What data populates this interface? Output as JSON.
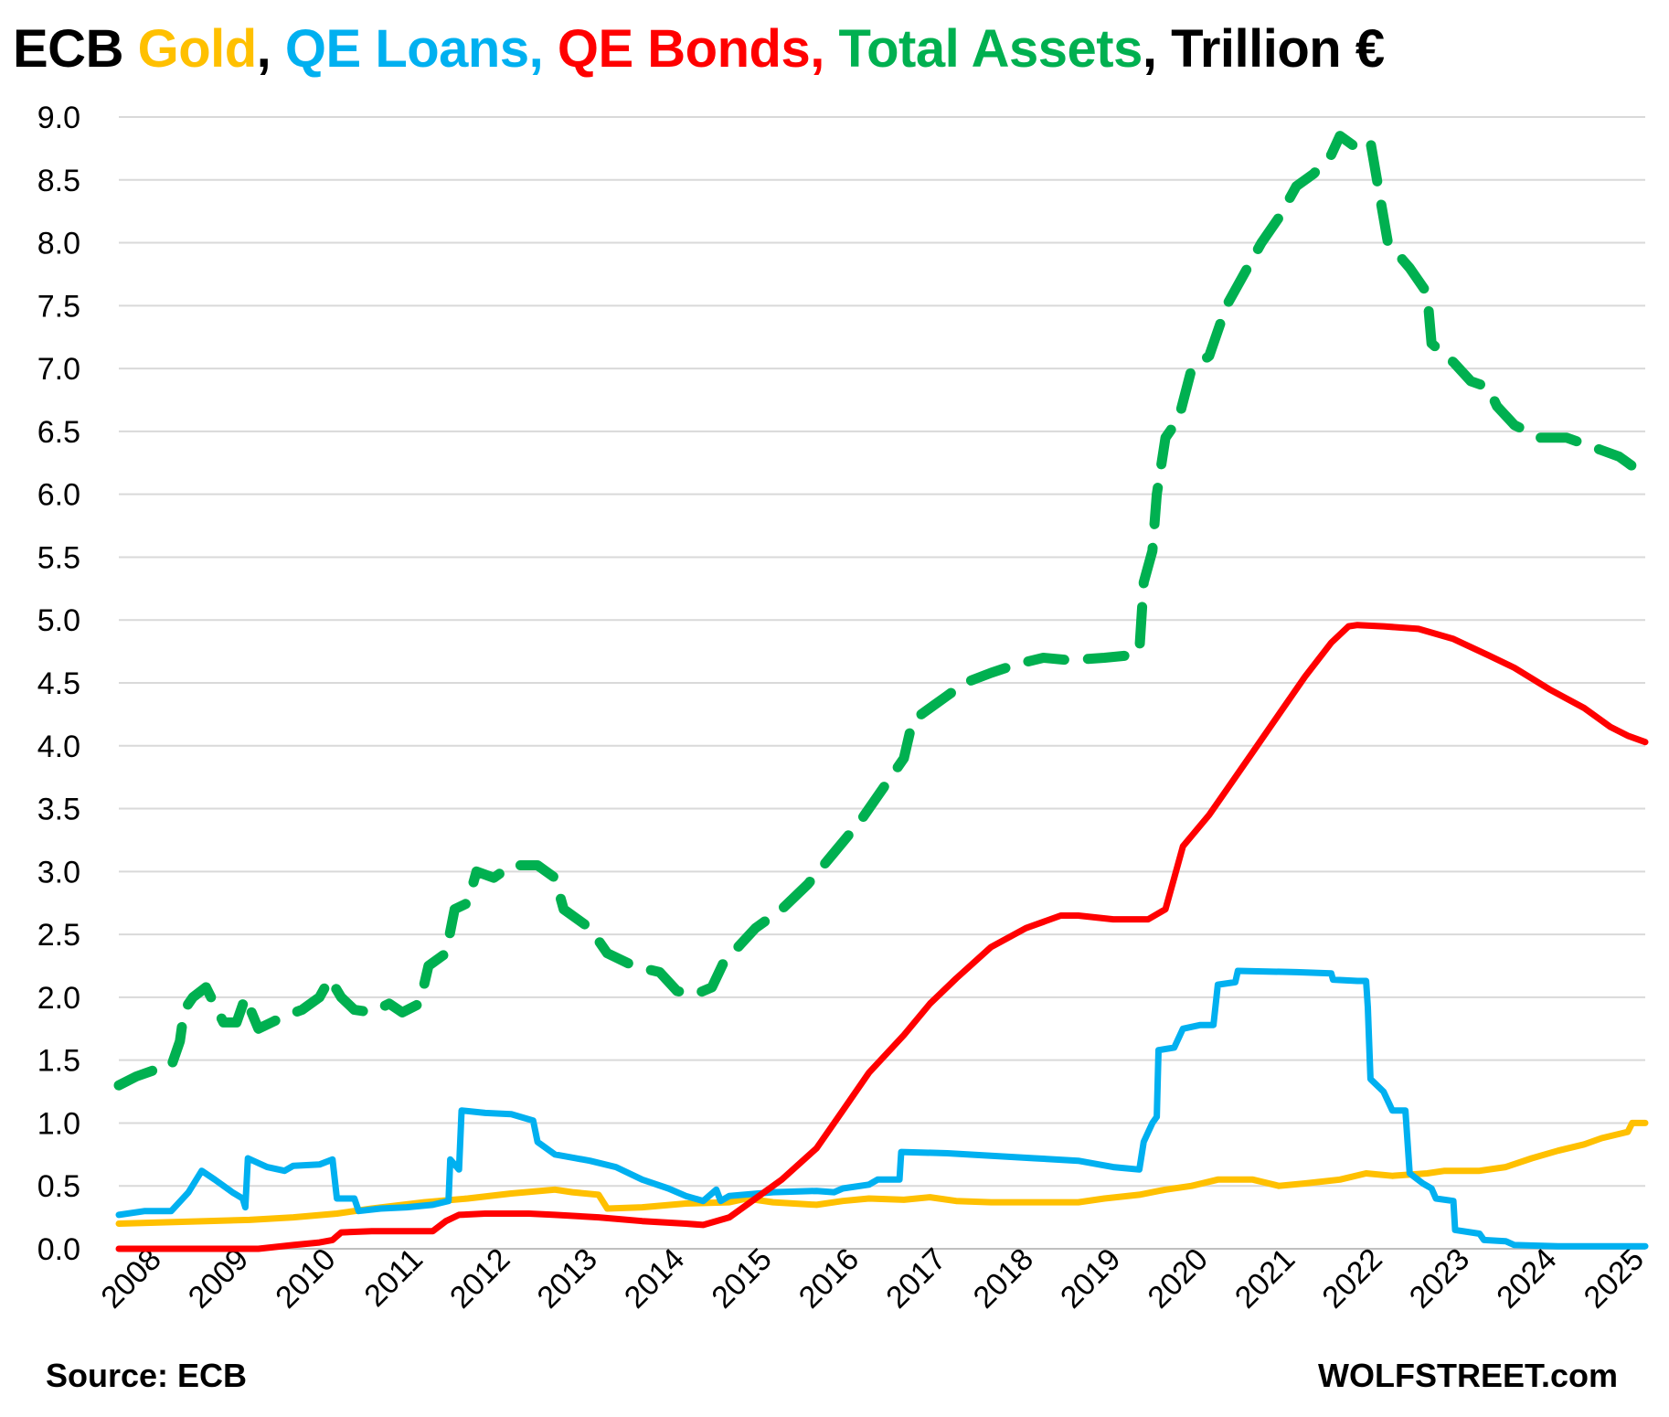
{
  "chart_data": {
    "type": "line",
    "title_parts": [
      {
        "text": "ECB ",
        "color": "#000000"
      },
      {
        "text": "Gold",
        "color": "#FFC000"
      },
      {
        "text": ", ",
        "color": "#000000"
      },
      {
        "text": "QE Loans,",
        "color": "#00B0F0"
      },
      {
        "text": " ",
        "color": "#000000"
      },
      {
        "text": "QE Bonds,",
        "color": "#FF0000"
      },
      {
        "text": " ",
        "color": "#000000"
      },
      {
        "text": "Total Assets",
        "color": "#00B050"
      },
      {
        "text": ", Trillion €",
        "color": "#000000"
      }
    ],
    "source": "Source: ECB",
    "brand": "WOLFSTREET.com",
    "x_tick_labels": [
      "2008",
      "2009",
      "2010",
      "2011",
      "2012",
      "2013",
      "2014",
      "2015",
      "2016",
      "2017",
      "2018",
      "2019",
      "2020",
      "2021",
      "2022",
      "2023",
      "2024",
      "2025"
    ],
    "y_tick_labels": [
      "0.0",
      "0.5",
      "1.0",
      "1.5",
      "2.0",
      "2.5",
      "3.0",
      "3.5",
      "4.0",
      "4.5",
      "5.0",
      "5.5",
      "6.0",
      "6.5",
      "7.0",
      "7.5",
      "8.0",
      "8.5",
      "9.0"
    ],
    "xlim": [
      2008.0,
      2025.5
    ],
    "ylim": [
      0,
      9
    ],
    "grid": "horizontal",
    "series": [
      {
        "key": "gold",
        "color": "#FFC000",
        "style": "solid",
        "points": [
          [
            2008.0,
            0.2
          ],
          [
            2008.5,
            0.21
          ],
          [
            2009.0,
            0.22
          ],
          [
            2009.5,
            0.23
          ],
          [
            2010.0,
            0.25
          ],
          [
            2010.5,
            0.28
          ],
          [
            2010.9,
            0.32
          ],
          [
            2011.5,
            0.37
          ],
          [
            2012.0,
            0.4
          ],
          [
            2012.5,
            0.44
          ],
          [
            2013.0,
            0.47
          ],
          [
            2013.2,
            0.45
          ],
          [
            2013.5,
            0.43
          ],
          [
            2013.6,
            0.32
          ],
          [
            2014.0,
            0.33
          ],
          [
            2014.5,
            0.36
          ],
          [
            2015.0,
            0.37
          ],
          [
            2015.2,
            0.4
          ],
          [
            2015.5,
            0.37
          ],
          [
            2016.0,
            0.35
          ],
          [
            2016.3,
            0.38
          ],
          [
            2016.6,
            0.4
          ],
          [
            2017.0,
            0.39
          ],
          [
            2017.3,
            0.41
          ],
          [
            2017.6,
            0.38
          ],
          [
            2018.0,
            0.37
          ],
          [
            2018.5,
            0.37
          ],
          [
            2019.0,
            0.37
          ],
          [
            2019.3,
            0.4
          ],
          [
            2019.7,
            0.43
          ],
          [
            2020.0,
            0.47
          ],
          [
            2020.3,
            0.5
          ],
          [
            2020.6,
            0.55
          ],
          [
            2021.0,
            0.55
          ],
          [
            2021.3,
            0.5
          ],
          [
            2021.6,
            0.52
          ],
          [
            2022.0,
            0.55
          ],
          [
            2022.3,
            0.6
          ],
          [
            2022.6,
            0.58
          ],
          [
            2023.0,
            0.6
          ],
          [
            2023.2,
            0.62
          ],
          [
            2023.6,
            0.62
          ],
          [
            2023.9,
            0.65
          ],
          [
            2024.2,
            0.72
          ],
          [
            2024.5,
            0.78
          ],
          [
            2024.8,
            0.83
          ],
          [
            2025.0,
            0.88
          ],
          [
            2025.3,
            0.93
          ],
          [
            2025.35,
            1.0
          ],
          [
            2025.5,
            1.0
          ]
        ]
      },
      {
        "key": "qe_loans",
        "color": "#00B0F0",
        "style": "solid",
        "points": [
          [
            2008.0,
            0.27
          ],
          [
            2008.3,
            0.3
          ],
          [
            2008.6,
            0.3
          ],
          [
            2008.8,
            0.45
          ],
          [
            2008.95,
            0.62
          ],
          [
            2009.1,
            0.55
          ],
          [
            2009.3,
            0.45
          ],
          [
            2009.42,
            0.4
          ],
          [
            2009.45,
            0.33
          ],
          [
            2009.48,
            0.72
          ],
          [
            2009.7,
            0.65
          ],
          [
            2009.9,
            0.62
          ],
          [
            2010.0,
            0.66
          ],
          [
            2010.3,
            0.67
          ],
          [
            2010.45,
            0.71
          ],
          [
            2010.5,
            0.4
          ],
          [
            2010.7,
            0.4
          ],
          [
            2010.75,
            0.3
          ],
          [
            2011.0,
            0.32
          ],
          [
            2011.3,
            0.33
          ],
          [
            2011.6,
            0.35
          ],
          [
            2011.78,
            0.38
          ],
          [
            2011.8,
            0.71
          ],
          [
            2011.9,
            0.63
          ],
          [
            2011.93,
            1.1
          ],
          [
            2012.2,
            1.08
          ],
          [
            2012.5,
            1.07
          ],
          [
            2012.75,
            1.02
          ],
          [
            2012.8,
            0.85
          ],
          [
            2013.0,
            0.75
          ],
          [
            2013.4,
            0.7
          ],
          [
            2013.7,
            0.65
          ],
          [
            2014.0,
            0.55
          ],
          [
            2014.3,
            0.48
          ],
          [
            2014.5,
            0.42
          ],
          [
            2014.7,
            0.38
          ],
          [
            2014.85,
            0.47
          ],
          [
            2014.9,
            0.38
          ],
          [
            2015.0,
            0.42
          ],
          [
            2015.5,
            0.45
          ],
          [
            2016.0,
            0.46
          ],
          [
            2016.2,
            0.45
          ],
          [
            2016.3,
            0.48
          ],
          [
            2016.6,
            0.51
          ],
          [
            2016.7,
            0.55
          ],
          [
            2016.95,
            0.55
          ],
          [
            2016.97,
            0.77
          ],
          [
            2017.5,
            0.76
          ],
          [
            2018.0,
            0.74
          ],
          [
            2018.5,
            0.72
          ],
          [
            2019.0,
            0.7
          ],
          [
            2019.4,
            0.65
          ],
          [
            2019.7,
            0.63
          ],
          [
            2019.75,
            0.85
          ],
          [
            2019.85,
            1.0
          ],
          [
            2019.9,
            1.05
          ],
          [
            2019.92,
            1.58
          ],
          [
            2020.1,
            1.6
          ],
          [
            2020.2,
            1.75
          ],
          [
            2020.4,
            1.78
          ],
          [
            2020.55,
            1.78
          ],
          [
            2020.6,
            2.1
          ],
          [
            2020.8,
            2.12
          ],
          [
            2020.83,
            2.21
          ],
          [
            2021.5,
            2.2
          ],
          [
            2021.9,
            2.19
          ],
          [
            2021.92,
            2.14
          ],
          [
            2022.2,
            2.13
          ],
          [
            2022.3,
            2.13
          ],
          [
            2022.32,
            1.92
          ],
          [
            2022.35,
            1.35
          ],
          [
            2022.5,
            1.25
          ],
          [
            2022.6,
            1.1
          ],
          [
            2022.75,
            1.1
          ],
          [
            2022.8,
            0.6
          ],
          [
            2022.95,
            0.52
          ],
          [
            2023.05,
            0.48
          ],
          [
            2023.1,
            0.4
          ],
          [
            2023.3,
            0.38
          ],
          [
            2023.32,
            0.15
          ],
          [
            2023.6,
            0.12
          ],
          [
            2023.65,
            0.07
          ],
          [
            2023.9,
            0.06
          ],
          [
            2024.0,
            0.03
          ],
          [
            2024.5,
            0.02
          ],
          [
            2025.0,
            0.02
          ],
          [
            2025.5,
            0.02
          ]
        ]
      },
      {
        "key": "qe_bonds",
        "color": "#FF0000",
        "style": "solid",
        "points": [
          [
            2008.0,
            0.0
          ],
          [
            2009.0,
            0.0
          ],
          [
            2009.6,
            0.0
          ],
          [
            2010.0,
            0.03
          ],
          [
            2010.3,
            0.05
          ],
          [
            2010.45,
            0.07
          ],
          [
            2010.55,
            0.13
          ],
          [
            2010.9,
            0.14
          ],
          [
            2011.6,
            0.14
          ],
          [
            2011.75,
            0.22
          ],
          [
            2011.9,
            0.27
          ],
          [
            2012.2,
            0.28
          ],
          [
            2012.7,
            0.28
          ],
          [
            2013.0,
            0.27
          ],
          [
            2013.5,
            0.25
          ],
          [
            2014.0,
            0.22
          ],
          [
            2014.5,
            0.2
          ],
          [
            2014.7,
            0.19
          ],
          [
            2015.0,
            0.25
          ],
          [
            2015.3,
            0.4
          ],
          [
            2015.6,
            0.55
          ],
          [
            2016.0,
            0.8
          ],
          [
            2016.3,
            1.1
          ],
          [
            2016.6,
            1.4
          ],
          [
            2017.0,
            1.7
          ],
          [
            2017.3,
            1.95
          ],
          [
            2017.6,
            2.15
          ],
          [
            2018.0,
            2.4
          ],
          [
            2018.4,
            2.55
          ],
          [
            2018.8,
            2.65
          ],
          [
            2019.0,
            2.65
          ],
          [
            2019.4,
            2.62
          ],
          [
            2019.8,
            2.62
          ],
          [
            2020.0,
            2.7
          ],
          [
            2020.1,
            2.95
          ],
          [
            2020.2,
            3.2
          ],
          [
            2020.5,
            3.45
          ],
          [
            2020.8,
            3.75
          ],
          [
            2021.0,
            3.95
          ],
          [
            2021.3,
            4.25
          ],
          [
            2021.6,
            4.55
          ],
          [
            2021.9,
            4.82
          ],
          [
            2022.1,
            4.95
          ],
          [
            2022.2,
            4.96
          ],
          [
            2022.5,
            4.95
          ],
          [
            2022.9,
            4.93
          ],
          [
            2023.3,
            4.85
          ],
          [
            2023.7,
            4.72
          ],
          [
            2024.0,
            4.62
          ],
          [
            2024.4,
            4.45
          ],
          [
            2024.8,
            4.3
          ],
          [
            2025.1,
            4.15
          ],
          [
            2025.3,
            4.08
          ],
          [
            2025.5,
            4.03
          ]
        ]
      },
      {
        "key": "total_assets",
        "color": "#00B050",
        "style": "dashed",
        "points": [
          [
            2008.0,
            1.3
          ],
          [
            2008.2,
            1.37
          ],
          [
            2008.4,
            1.42
          ],
          [
            2008.6,
            1.45
          ],
          [
            2008.7,
            1.65
          ],
          [
            2008.75,
            1.9
          ],
          [
            2008.85,
            2.0
          ],
          [
            2009.0,
            2.08
          ],
          [
            2009.2,
            1.8
          ],
          [
            2009.35,
            1.8
          ],
          [
            2009.45,
            2.0
          ],
          [
            2009.6,
            1.75
          ],
          [
            2009.75,
            1.8
          ],
          [
            2009.9,
            1.85
          ],
          [
            2010.1,
            1.9
          ],
          [
            2010.3,
            2.0
          ],
          [
            2010.42,
            2.15
          ],
          [
            2010.55,
            2.0
          ],
          [
            2010.7,
            1.9
          ],
          [
            2010.9,
            1.88
          ],
          [
            2011.1,
            1.95
          ],
          [
            2011.25,
            1.88
          ],
          [
            2011.45,
            1.95
          ],
          [
            2011.55,
            2.25
          ],
          [
            2011.75,
            2.35
          ],
          [
            2011.85,
            2.7
          ],
          [
            2012.0,
            2.75
          ],
          [
            2012.1,
            3.0
          ],
          [
            2012.3,
            2.95
          ],
          [
            2012.5,
            3.05
          ],
          [
            2012.8,
            3.05
          ],
          [
            2013.0,
            2.95
          ],
          [
            2013.1,
            2.7
          ],
          [
            2013.4,
            2.55
          ],
          [
            2013.6,
            2.35
          ],
          [
            2013.9,
            2.25
          ],
          [
            2014.2,
            2.2
          ],
          [
            2014.4,
            2.05
          ],
          [
            2014.6,
            2.02
          ],
          [
            2014.8,
            2.08
          ],
          [
            2014.95,
            2.3
          ],
          [
            2015.1,
            2.4
          ],
          [
            2015.3,
            2.55
          ],
          [
            2015.6,
            2.7
          ],
          [
            2015.9,
            2.9
          ],
          [
            2016.2,
            3.15
          ],
          [
            2016.5,
            3.4
          ],
          [
            2016.8,
            3.7
          ],
          [
            2017.0,
            3.9
          ],
          [
            2017.1,
            4.2
          ],
          [
            2017.3,
            4.3
          ],
          [
            2017.5,
            4.4
          ],
          [
            2017.7,
            4.5
          ],
          [
            2018.0,
            4.58
          ],
          [
            2018.3,
            4.65
          ],
          [
            2018.6,
            4.7
          ],
          [
            2018.9,
            4.68
          ],
          [
            2019.3,
            4.7
          ],
          [
            2019.6,
            4.72
          ],
          [
            2019.7,
            4.75
          ],
          [
            2019.75,
            5.3
          ],
          [
            2019.85,
            5.55
          ],
          [
            2019.9,
            6.0
          ],
          [
            2020.0,
            6.45
          ],
          [
            2020.15,
            6.6
          ],
          [
            2020.3,
            7.0
          ],
          [
            2020.5,
            7.1
          ],
          [
            2020.7,
            7.5
          ],
          [
            2020.9,
            7.75
          ],
          [
            2021.1,
            8.0
          ],
          [
            2021.3,
            8.2
          ],
          [
            2021.5,
            8.45
          ],
          [
            2021.7,
            8.55
          ],
          [
            2021.9,
            8.7
          ],
          [
            2022.0,
            8.85
          ],
          [
            2022.2,
            8.75
          ],
          [
            2022.35,
            8.8
          ],
          [
            2022.45,
            8.4
          ],
          [
            2022.55,
            8.0
          ],
          [
            2022.8,
            7.8
          ],
          [
            2023.0,
            7.6
          ],
          [
            2023.05,
            7.2
          ],
          [
            2023.3,
            7.05
          ],
          [
            2023.5,
            6.9
          ],
          [
            2023.7,
            6.85
          ],
          [
            2023.8,
            6.7
          ],
          [
            2024.0,
            6.55
          ],
          [
            2024.3,
            6.45
          ],
          [
            2024.6,
            6.45
          ],
          [
            2024.8,
            6.4
          ],
          [
            2025.0,
            6.35
          ],
          [
            2025.2,
            6.3
          ],
          [
            2025.4,
            6.2
          ]
        ]
      }
    ]
  }
}
